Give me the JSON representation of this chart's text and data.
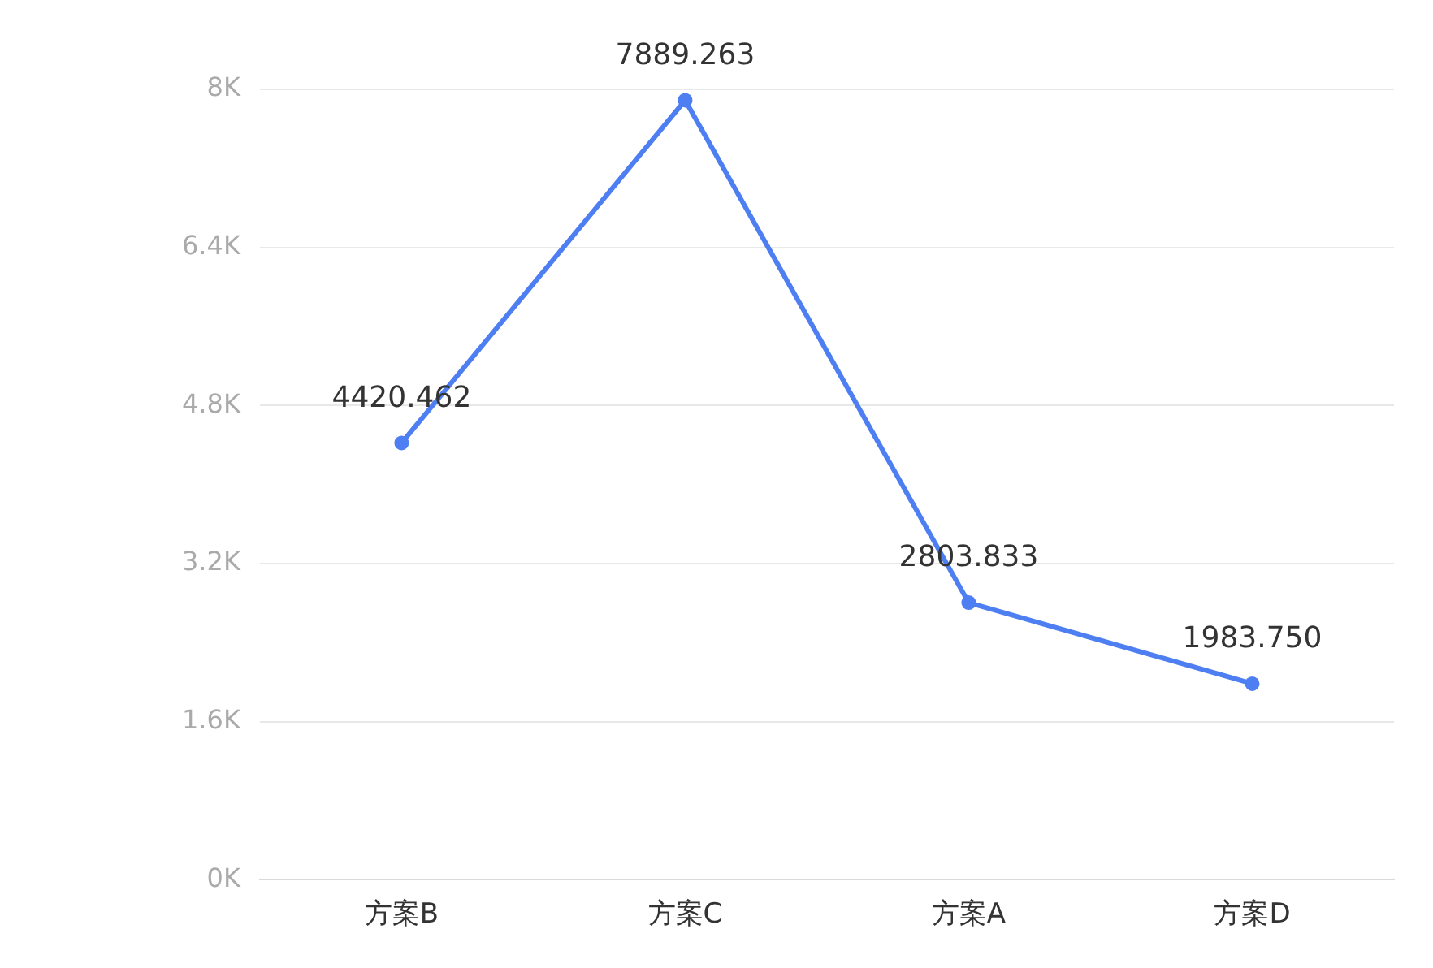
{
  "chart_data": {
    "type": "line",
    "categories": [
      "方案B",
      "方案C",
      "方案A",
      "方案D"
    ],
    "series": [
      {
        "color": "#4e7ff2",
        "values": [
          4420.462,
          7889.263,
          2803.833,
          1983.75
        ]
      }
    ],
    "value_labels": [
      "4420.462",
      "7889.263",
      "2803.833",
      "1983.750"
    ],
    "ylim": [
      0,
      8000
    ],
    "yticks": [
      {
        "value": 0,
        "label": "0K"
      },
      {
        "value": 1600,
        "label": "1.6K"
      },
      {
        "value": 3200,
        "label": "3.2K"
      },
      {
        "value": 4800,
        "label": "4.8K"
      },
      {
        "value": 6400,
        "label": "6.4K"
      },
      {
        "value": 8000,
        "label": "8K"
      }
    ],
    "grid": "y",
    "legend": false,
    "marker": "circle",
    "line_style": "solid"
  }
}
